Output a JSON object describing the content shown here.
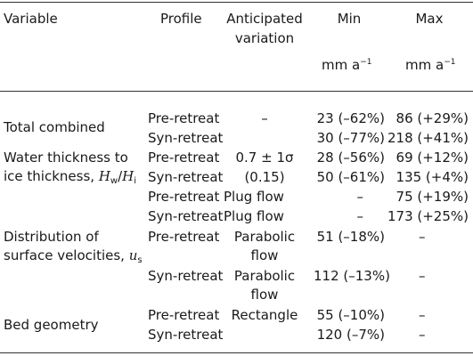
{
  "header": {
    "variable": "Variable",
    "profile": "Profile",
    "anticipated_line1": "Anticipated",
    "anticipated_line2": "variation",
    "min": "Min",
    "max": "Max",
    "unit_min": "mm a",
    "unit_max": "mm a",
    "unit_exp": "−1"
  },
  "rows": [
    {
      "variable": "Total combined",
      "profile": "Pre-retreat",
      "variation": "–",
      "min": "23 (–62%)",
      "max": "86 (+29%)"
    },
    {
      "profile": "Syn-retreat",
      "min": "30 (–77%)",
      "max": "218 (+41%)"
    },
    {
      "variable_line1": "Water thickness to",
      "variable_line2_prefix": "ice thickness, ",
      "var_H": "H",
      "var_w": "w",
      "var_slash": "/",
      "var_i": "i",
      "profile": "Pre-retreat",
      "variation": "0.7 ± 1σ",
      "min": "28 (–56%)",
      "max": "69 (+12%)"
    },
    {
      "profile": "Syn-retreat",
      "variation": "(0.15)",
      "min": "50 (–61%)",
      "max": "135 (+4%)"
    },
    {
      "profile": "Pre-retreat",
      "variation": "Plug flow",
      "min": "–",
      "max": "75 (+19%)"
    },
    {
      "profile": "Syn-retreat",
      "variation": "Plug flow",
      "min": "–",
      "max": "173 (+25%)"
    },
    {
      "variable_line1": "Distribution of",
      "variable_line2_prefix": "surface velocities, ",
      "var_u": "u",
      "var_s": "s",
      "profile": "Pre-retreat",
      "variation_line1": "Parabolic",
      "variation_line2": "flow",
      "min": "51 (–18%)",
      "max": "–"
    },
    {
      "profile": "Syn-retreat",
      "variation_line1": "Parabolic",
      "variation_line2": "flow",
      "min": "112 (–13%)",
      "max": "–"
    },
    {
      "variable": "Bed geometry",
      "profile": "Pre-retreat",
      "variation": "Rectangle",
      "min": "55 (–10%)",
      "max": "–"
    },
    {
      "profile": "Syn-retreat",
      "min": "120 (–7%)",
      "max": "–"
    }
  ]
}
